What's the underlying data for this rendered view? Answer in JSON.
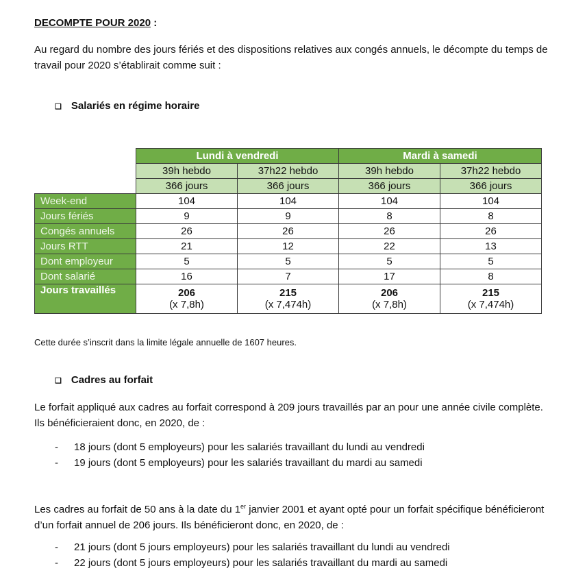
{
  "title": "DECOMPTE POUR 2020",
  "title_suffix": " :",
  "intro": "Au regard du nombre des jours fériés et des dispositions relatives aux congés annuels, le décompte du temps de travail pour 2020 s’établirait comme suit :",
  "section1": "Salariés en régime horaire",
  "table": {
    "groups": [
      "Lundi à vendredi",
      "Mardi à samedi"
    ],
    "subheaders": [
      "39h hebdo",
      "37h22 hebdo",
      "39h hebdo",
      "37h22 hebdo"
    ],
    "days": [
      "366 jours",
      "366 jours",
      "366 jours",
      "366 jours"
    ],
    "rows": [
      {
        "label": "Week-end",
        "values": [
          "104",
          "104",
          "104",
          "104"
        ]
      },
      {
        "label": "Jours fériés",
        "values": [
          "9",
          "9",
          "8",
          "8"
        ]
      },
      {
        "label": "Congés annuels",
        "values": [
          "26",
          "26",
          "26",
          "26"
        ]
      },
      {
        "label": "Jours RTT",
        "values": [
          "21",
          "12",
          "22",
          "13"
        ]
      },
      {
        "label": "Dont employeur",
        "values": [
          "5",
          "5",
          "5",
          "5"
        ]
      },
      {
        "label": "Dont salarié",
        "values": [
          "16",
          "7",
          "17",
          "8"
        ]
      }
    ],
    "total": {
      "label": "Jours travaillés",
      "values": [
        "206",
        "215",
        "206",
        "215"
      ],
      "notes": [
        "(x 7,8h)",
        "(x 7,474h)",
        "(x 7,8h)",
        "(x 7,474h)"
      ]
    },
    "colors": {
      "header": "#70ad47",
      "subheader": "#c6e0b4"
    }
  },
  "note": "Cette durée s’inscrit dans la limite légale annuelle de 1607 heures.",
  "section2": "Cadres au forfait",
  "para2": "Le forfait appliqué aux cadres au forfait correspond à 209 jours travaillés par an pour une année civile complète. Ils bénéficieraient donc, en 2020, de :",
  "list1": [
    "18 jours (dont 5 employeurs) pour les salariés travaillant du lundi au vendredi",
    "19 jours (dont 5 employeurs) pour les salariés travaillant du mardi au samedi"
  ],
  "para3_a": "Les cadres au forfait de 50 ans à la date du 1",
  "para3_sup": "er",
  "para3_b": " janvier 2001 et ayant opté pour un forfait spécifique bénéficieront d’un forfait annuel de 206 jours. Ils bénéficieront donc, en 2020, de :",
  "list2": [
    "21 jours (dont 5 jours employeurs) pour les salariés travaillant du lundi au vendredi",
    "22 jours (dont 5 jours employeurs) pour les salariés travaillant du mardi au samedi"
  ],
  "bullet": "❑",
  "dash": "-"
}
